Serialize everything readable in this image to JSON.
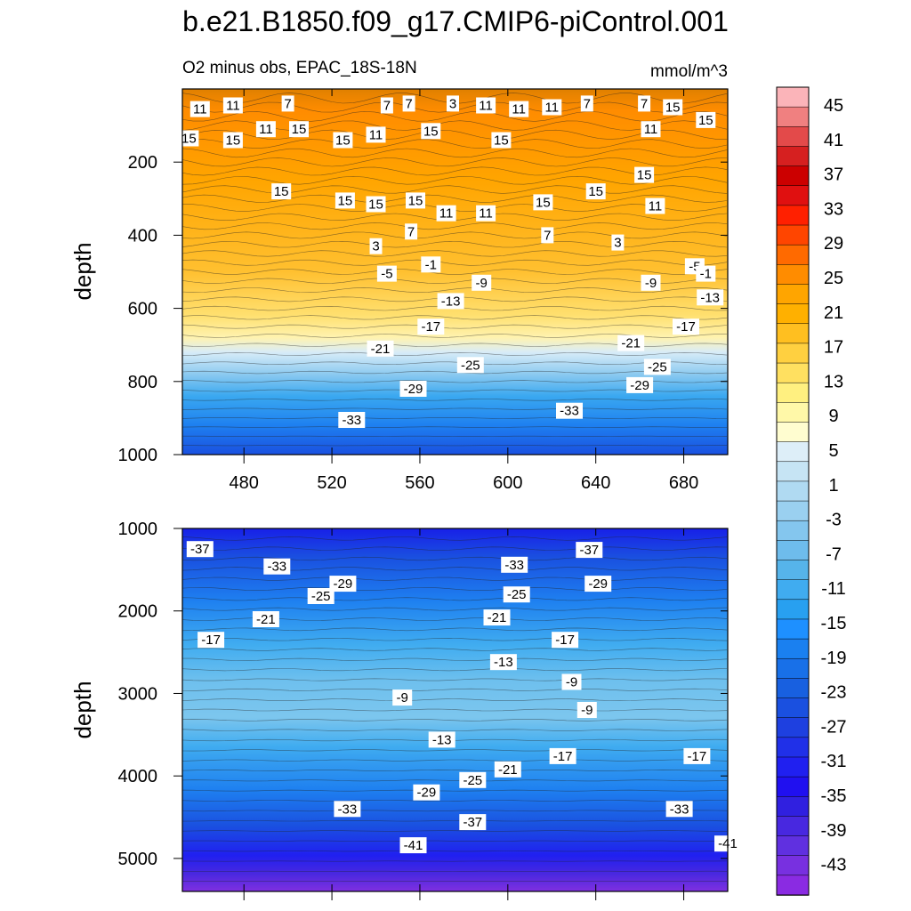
{
  "title": "b.e21.B1850.f09_g17.CMIP6-piControl.001",
  "chart_data": {
    "type": "contour",
    "subtitle_left": "O2 minus obs, EPAC_18S-18N",
    "subtitle_right": "mmol/m^3",
    "ylabel": "depth",
    "x_range": [
      452,
      700
    ],
    "x_ticks": [
      480,
      520,
      560,
      600,
      640,
      680
    ],
    "top_panel": {
      "y_range": [
        0,
        1000
      ],
      "y_ticks": [
        200,
        400,
        600,
        800,
        1000
      ],
      "contour_labels": [
        {
          "x": 460,
          "y": 55,
          "v": "11"
        },
        {
          "x": 475,
          "y": 45,
          "v": "11"
        },
        {
          "x": 500,
          "y": 40,
          "v": "7"
        },
        {
          "x": 545,
          "y": 45,
          "v": "7"
        },
        {
          "x": 555,
          "y": 40,
          "v": "7"
        },
        {
          "x": 575,
          "y": 40,
          "v": "3"
        },
        {
          "x": 590,
          "y": 45,
          "v": "11"
        },
        {
          "x": 605,
          "y": 55,
          "v": "11"
        },
        {
          "x": 620,
          "y": 50,
          "v": "11"
        },
        {
          "x": 636,
          "y": 40,
          "v": "7"
        },
        {
          "x": 662,
          "y": 40,
          "v": "7"
        },
        {
          "x": 675,
          "y": 50,
          "v": "15"
        },
        {
          "x": 455,
          "y": 135,
          "v": "15"
        },
        {
          "x": 475,
          "y": 140,
          "v": "15"
        },
        {
          "x": 490,
          "y": 110,
          "v": "11"
        },
        {
          "x": 505,
          "y": 110,
          "v": "15"
        },
        {
          "x": 525,
          "y": 140,
          "v": "15"
        },
        {
          "x": 540,
          "y": 125,
          "v": "11"
        },
        {
          "x": 565,
          "y": 115,
          "v": "15"
        },
        {
          "x": 597,
          "y": 140,
          "v": "15"
        },
        {
          "x": 665,
          "y": 110,
          "v": "11"
        },
        {
          "x": 690,
          "y": 85,
          "v": "15"
        },
        {
          "x": 497,
          "y": 280,
          "v": "15"
        },
        {
          "x": 526,
          "y": 305,
          "v": "15"
        },
        {
          "x": 540,
          "y": 315,
          "v": "15"
        },
        {
          "x": 558,
          "y": 305,
          "v": "15"
        },
        {
          "x": 572,
          "y": 340,
          "v": "11"
        },
        {
          "x": 590,
          "y": 340,
          "v": "11"
        },
        {
          "x": 616,
          "y": 310,
          "v": "15"
        },
        {
          "x": 640,
          "y": 280,
          "v": "15"
        },
        {
          "x": 662,
          "y": 235,
          "v": "15"
        },
        {
          "x": 667,
          "y": 320,
          "v": "11"
        },
        {
          "x": 556,
          "y": 390,
          "v": "7"
        },
        {
          "x": 618,
          "y": 400,
          "v": "7"
        },
        {
          "x": 540,
          "y": 430,
          "v": "3"
        },
        {
          "x": 650,
          "y": 420,
          "v": "3"
        },
        {
          "x": 565,
          "y": 480,
          "v": "-1"
        },
        {
          "x": 545,
          "y": 505,
          "v": "-5"
        },
        {
          "x": 588,
          "y": 530,
          "v": "-9"
        },
        {
          "x": 665,
          "y": 530,
          "v": "-9"
        },
        {
          "x": 685,
          "y": 485,
          "v": "-5"
        },
        {
          "x": 690,
          "y": 505,
          "v": "-1"
        },
        {
          "x": 574,
          "y": 580,
          "v": "-13"
        },
        {
          "x": 692,
          "y": 570,
          "v": "-13"
        },
        {
          "x": 565,
          "y": 650,
          "v": "-17"
        },
        {
          "x": 681,
          "y": 650,
          "v": "-17"
        },
        {
          "x": 542,
          "y": 710,
          "v": "-21"
        },
        {
          "x": 656,
          "y": 695,
          "v": "-21"
        },
        {
          "x": 583,
          "y": 755,
          "v": "-25"
        },
        {
          "x": 668,
          "y": 760,
          "v": "-25"
        },
        {
          "x": 557,
          "y": 820,
          "v": "-29"
        },
        {
          "x": 660,
          "y": 810,
          "v": "-29"
        },
        {
          "x": 529,
          "y": 905,
          "v": "-33"
        },
        {
          "x": 628,
          "y": 880,
          "v": "-33"
        }
      ]
    },
    "bottom_panel": {
      "y_range": [
        1000,
        5400
      ],
      "y_ticks": [
        1000,
        2000,
        3000,
        4000,
        5000
      ],
      "contour_labels": [
        {
          "x": 460,
          "y": 1250,
          "v": "-37"
        },
        {
          "x": 495,
          "y": 1460,
          "v": "-33"
        },
        {
          "x": 515,
          "y": 1820,
          "v": "-25"
        },
        {
          "x": 525,
          "y": 1670,
          "v": "-29"
        },
        {
          "x": 490,
          "y": 2100,
          "v": "-21"
        },
        {
          "x": 465,
          "y": 2350,
          "v": "-17"
        },
        {
          "x": 552,
          "y": 3050,
          "v": "-9"
        },
        {
          "x": 595,
          "y": 2080,
          "v": "-21"
        },
        {
          "x": 604,
          "y": 1800,
          "v": "-25"
        },
        {
          "x": 603,
          "y": 1440,
          "v": "-33"
        },
        {
          "x": 637,
          "y": 1260,
          "v": "-37"
        },
        {
          "x": 641,
          "y": 1670,
          "v": "-29"
        },
        {
          "x": 626,
          "y": 2350,
          "v": "-17"
        },
        {
          "x": 598,
          "y": 2620,
          "v": "-13"
        },
        {
          "x": 629,
          "y": 2860,
          "v": "-9"
        },
        {
          "x": 636,
          "y": 3200,
          "v": "-9"
        },
        {
          "x": 570,
          "y": 3560,
          "v": "-13"
        },
        {
          "x": 625,
          "y": 3760,
          "v": "-17"
        },
        {
          "x": 686,
          "y": 3760,
          "v": "-17"
        },
        {
          "x": 747,
          "y": 3560,
          "v": "-13"
        },
        {
          "x": 600,
          "y": 3920,
          "v": "-21"
        },
        {
          "x": 584,
          "y": 4050,
          "v": "-25"
        },
        {
          "x": 563,
          "y": 4200,
          "v": "-29"
        },
        {
          "x": 527,
          "y": 4400,
          "v": "-33"
        },
        {
          "x": 584,
          "y": 4560,
          "v": "-37"
        },
        {
          "x": 557,
          "y": 4840,
          "v": "-41"
        },
        {
          "x": 678,
          "y": 4400,
          "v": "-33"
        },
        {
          "x": 721,
          "y": 4200,
          "v": "-29"
        },
        {
          "x": 765,
          "y": 4050,
          "v": "-25"
        },
        {
          "x": 735,
          "y": 4560,
          "v": "-37"
        },
        {
          "x": 700,
          "y": 4820,
          "v": "-41"
        }
      ]
    },
    "colorbar": {
      "labels": [
        "45",
        "41",
        "37",
        "33",
        "29",
        "25",
        "21",
        "17",
        "13",
        "9",
        "5",
        "1",
        "-3",
        "-7",
        "-11",
        "-15",
        "-19",
        "-23",
        "-27",
        "-31",
        "-35",
        "-39",
        "-43"
      ],
      "colors": [
        "#fbb4b9",
        "#f08080",
        "#e34a4a",
        "#d62020",
        "#cc0000",
        "#e01010",
        "#ff2000",
        "#ff4500",
        "#ff6a00",
        "#ff8c00",
        "#ffa500",
        "#ffb000",
        "#ffbf20",
        "#ffd040",
        "#ffe060",
        "#fff080",
        "#fff8a8",
        "#fffdd0",
        "#ddeef8",
        "#c6e4f4",
        "#b0daf2",
        "#9ad0f0",
        "#84c6ee",
        "#6ebcec",
        "#56b4ea",
        "#40acf0",
        "#28a0f0",
        "#1e90ff",
        "#1a80f0",
        "#1870e8",
        "#1860e0",
        "#1a50e0",
        "#1e40e0",
        "#2030e8",
        "#2020f0",
        "#2010f0",
        "#3020e0",
        "#4828e0",
        "#6030e0",
        "#7830e0",
        "#8a2be2"
      ]
    }
  }
}
